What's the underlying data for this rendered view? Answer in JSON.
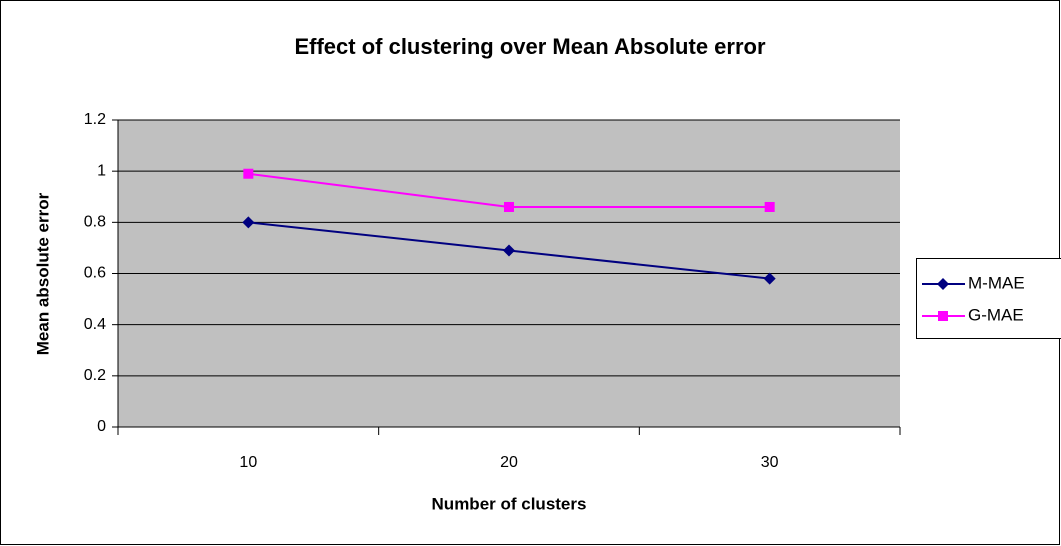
{
  "chart_data": {
    "type": "line",
    "title": "Effect of clustering over Mean Absolute error",
    "xlabel": "Number of clusters",
    "ylabel": "Mean absolute error",
    "categories": [
      "10",
      "20",
      "30"
    ],
    "series": [
      {
        "name": "M-MAE",
        "color": "#000080",
        "marker": "diamond",
        "values": [
          0.8,
          0.69,
          0.58
        ]
      },
      {
        "name": "G-MAE",
        "color": "#ff00ff",
        "marker": "square",
        "values": [
          0.99,
          0.86,
          0.86
        ]
      }
    ],
    "ylim": [
      0,
      1.2
    ],
    "yticks": [
      0,
      0.2,
      0.4,
      0.6,
      0.8,
      1,
      1.2
    ],
    "grid": true,
    "legend": "right"
  }
}
